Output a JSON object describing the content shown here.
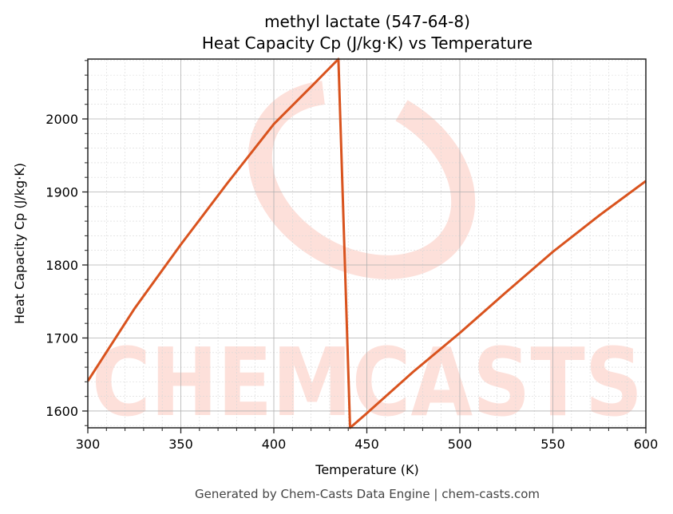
{
  "chart_data": {
    "type": "line",
    "title": "methyl lactate (547-64-8)",
    "subtitle": "Heat Capacity Cp (J/kg·K) vs Temperature",
    "xlabel": "Temperature (K)",
    "ylabel": "Heat Capacity Cp (J/kg·K)",
    "xlim": [
      300,
      600
    ],
    "ylim": [
      1577,
      2082
    ],
    "x_ticks": [
      300,
      350,
      400,
      450,
      500,
      550,
      600
    ],
    "y_ticks": [
      1600,
      1700,
      1800,
      1900,
      2000
    ],
    "grid": {
      "major": true,
      "minor": true
    },
    "legend": null,
    "series": [
      {
        "name": "Cp",
        "color": "#d9531e",
        "points": [
          [
            300,
            1641
          ],
          [
            325,
            1740
          ],
          [
            350,
            1828
          ],
          [
            375,
            1912
          ],
          [
            400,
            1993
          ],
          [
            420,
            2044
          ],
          [
            434.7,
            2082
          ],
          [
            441,
            1577
          ],
          [
            450,
            1597
          ],
          [
            475,
            1654
          ],
          [
            500,
            1707
          ],
          [
            525,
            1763
          ],
          [
            550,
            1818
          ],
          [
            575,
            1868
          ],
          [
            600,
            1915
          ]
        ]
      }
    ]
  },
  "footer": "Generated by Chem-Casts Data Engine | chem-casts.com",
  "watermark": {
    "text": "CHEMCASTS",
    "color": "#fde0da"
  }
}
